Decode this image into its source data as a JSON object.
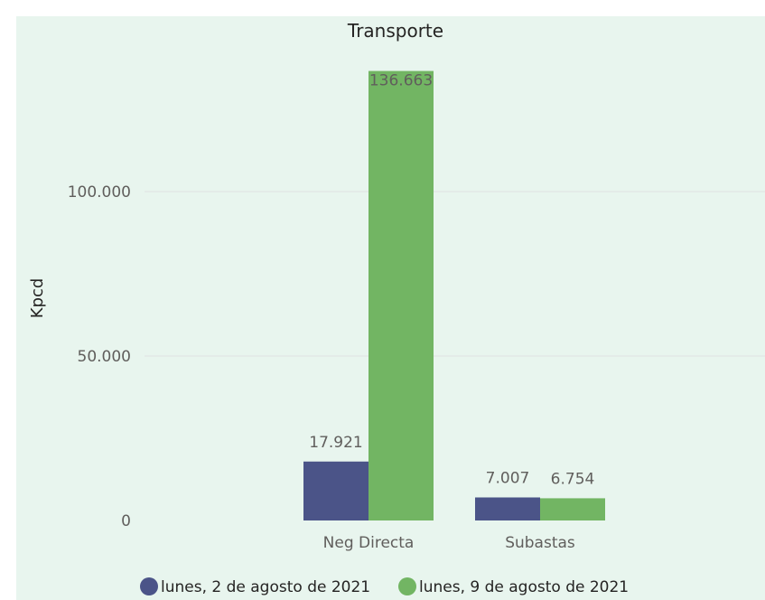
{
  "chart_data": {
    "type": "bar",
    "title": "Transporte",
    "ylabel": "Kpcd",
    "xlabel": "",
    "categories": [
      "Neg Directa",
      "Subastas"
    ],
    "series": [
      {
        "name": "lunes, 2 de agosto de 2021",
        "values": [
          17921,
          7007
        ],
        "labels": [
          "17.921",
          "7.007"
        ],
        "color": "#4b5488"
      },
      {
        "name": "lunes, 9 de agosto de 2021",
        "values": [
          136663,
          6754
        ],
        "labels": [
          "136.663",
          "6.754"
        ],
        "color": "#72b563"
      }
    ],
    "ylim": [
      0,
      140000
    ],
    "yticks": [
      0,
      50000,
      100000
    ],
    "ytick_labels": [
      "0",
      "50.000",
      "100.000"
    ],
    "grid": true,
    "legend": "bottom",
    "colors": {
      "background": "#e8f5ee",
      "gridline": "#e1e1e1"
    }
  }
}
